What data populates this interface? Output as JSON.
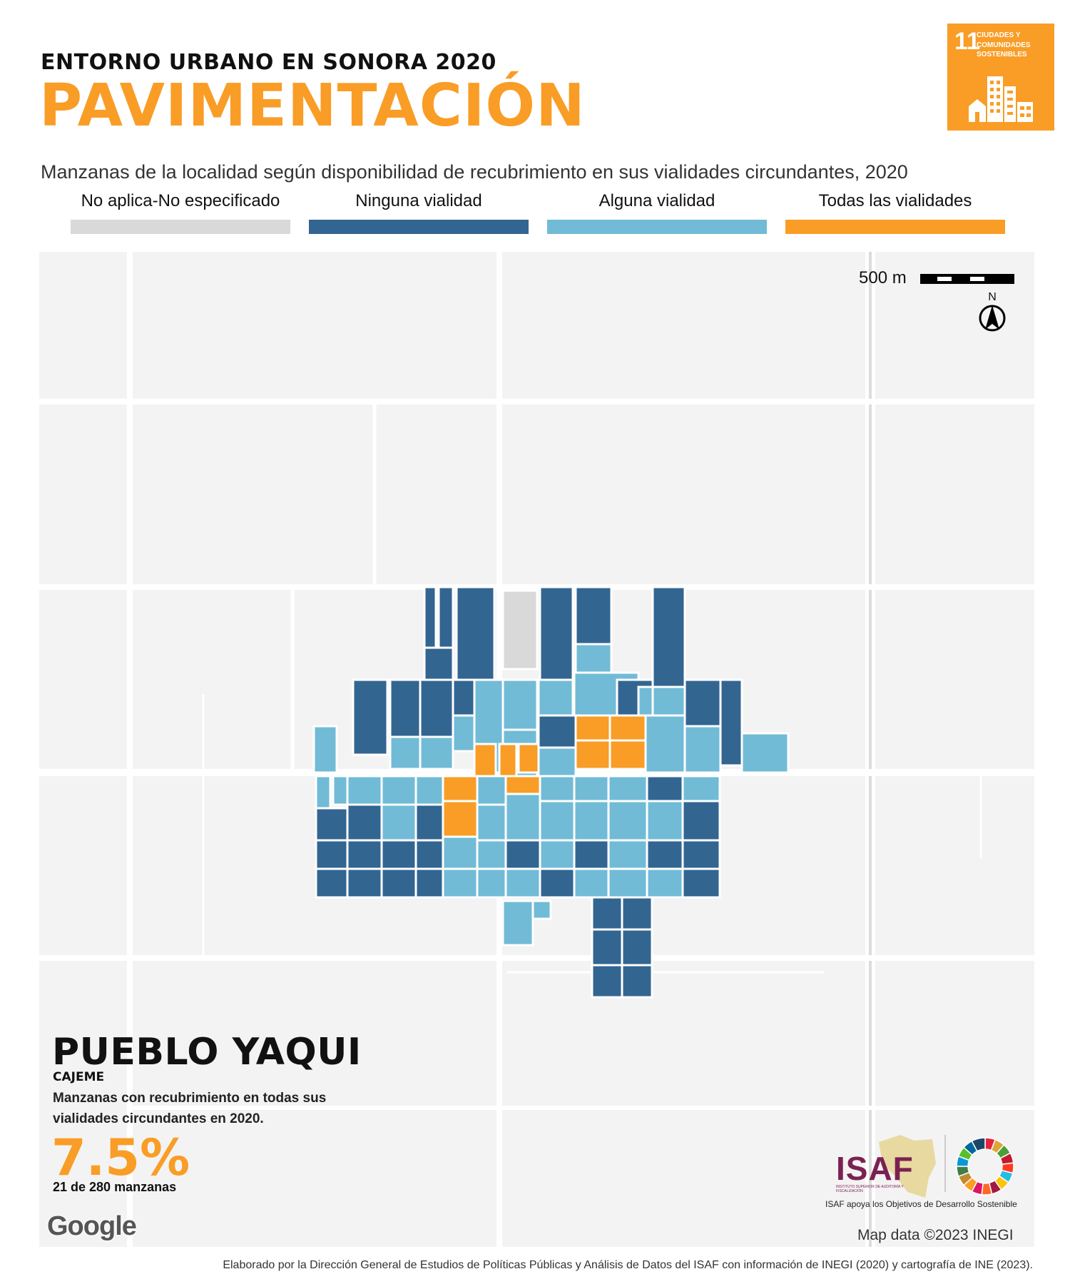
{
  "header": {
    "kicker": "ENTORNO URBANO EN SONORA 2020",
    "title": "PAVIMENTACIÓN",
    "subtitle": "Manzanas de la localidad según disponibilidad de recubrimiento en sus vialidades circundantes, 2020"
  },
  "sdg_badge": {
    "number": "11",
    "text": "CIUDADES Y COMUNIDADES SOSTENIBLES",
    "color": "#F99D26"
  },
  "legend": [
    {
      "label": "No aplica-No especificado",
      "color": "#D9D9D9"
    },
    {
      "label": "Ninguna vialidad",
      "color": "#336591"
    },
    {
      "label": "Alguna vialidad",
      "color": "#72BBD6"
    },
    {
      "label": "Todas las vialidades",
      "color": "#F99D26"
    }
  ],
  "map": {
    "scale_label": "500 m",
    "north_label": "N",
    "attribution": "Map data ©2023 INEGI",
    "provider": "Google"
  },
  "locality": {
    "name": "PUEBLO YAQUI",
    "municipality": "CAJEME",
    "description": "Manzanas con recubrimiento en todas sus vialidades circundantes en 2020.",
    "percent": "7.5%",
    "count_text": "21 de 280 manzanas"
  },
  "branding": {
    "isaf_logo": "ISAF",
    "isaf_subtext": "INSTITUTO SUPERIOR DE AUDITORÍA Y FISCALIZACIÓN",
    "isaf_caption": "ISAF apoya los Objetivos de Desarrollo Sostenible"
  },
  "footer": {
    "credit": "Elaborado por la Dirección General de Estudios de Políticas Públicas y Análisis de Datos del ISAF con información de INEGI (2020) y cartografía de INE (2023)."
  }
}
